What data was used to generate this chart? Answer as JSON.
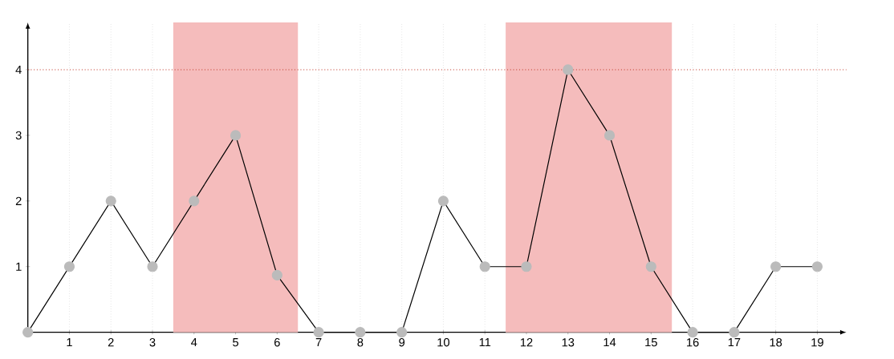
{
  "chart_data": {
    "type": "line",
    "x": [
      0,
      1,
      2,
      3,
      4,
      5,
      6,
      7,
      8,
      9,
      10,
      11,
      12,
      13,
      14,
      15,
      16,
      17,
      18,
      19
    ],
    "series": [
      {
        "color": "#000000",
        "values": [
          0,
          1,
          2,
          1,
          2,
          3,
          0.87,
          0,
          0,
          0,
          2,
          1,
          1,
          4,
          3,
          1,
          0,
          0,
          1,
          1
        ]
      }
    ],
    "marker": "circle",
    "line_style": "solid",
    "grid": "x",
    "xlim": [
      0,
      19.7
    ],
    "ylim": [
      0,
      4.72
    ],
    "xticks": [
      {
        "value": 0,
        "label": null
      },
      1,
      2,
      3,
      4,
      5,
      6,
      7,
      8,
      9,
      10,
      11,
      12,
      13,
      14,
      15,
      16,
      17,
      18,
      19
    ],
    "yticks": [
      1,
      2,
      3,
      4
    ],
    "bands": [
      {
        "axis": "x",
        "from": 3.5,
        "to": 6.5,
        "color": "#f5bcbc"
      },
      {
        "axis": "x",
        "from": 11.5,
        "to": 15.5,
        "color": "#f5bcbc"
      }
    ],
    "ref_lines": [
      {
        "axis": "y",
        "value": 4,
        "color": "#c0392b",
        "line_style": "dotted"
      }
    ]
  }
}
